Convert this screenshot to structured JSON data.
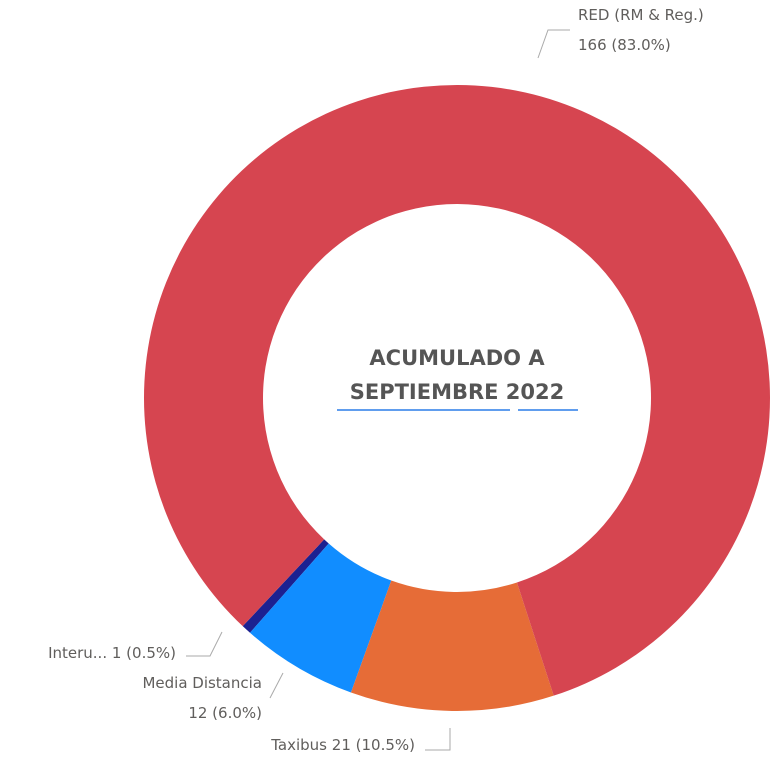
{
  "chart_data": {
    "type": "donut",
    "center_label": [
      "ACUMULADO A",
      "SEPTIEMBRE 2022"
    ],
    "categories": [
      "RED (RM & Reg.)",
      "Taxibus",
      "Media Distancia",
      "Interu..."
    ],
    "values": [
      166,
      21,
      12,
      1
    ],
    "value_labels": [
      "166 (83.0%)",
      "21 (10.5%)",
      "12 (6.0%)",
      "1 (0.5%)"
    ],
    "colors": [
      "#d64550",
      "#e66c37",
      "#118dff",
      "#1c2191"
    ]
  }
}
